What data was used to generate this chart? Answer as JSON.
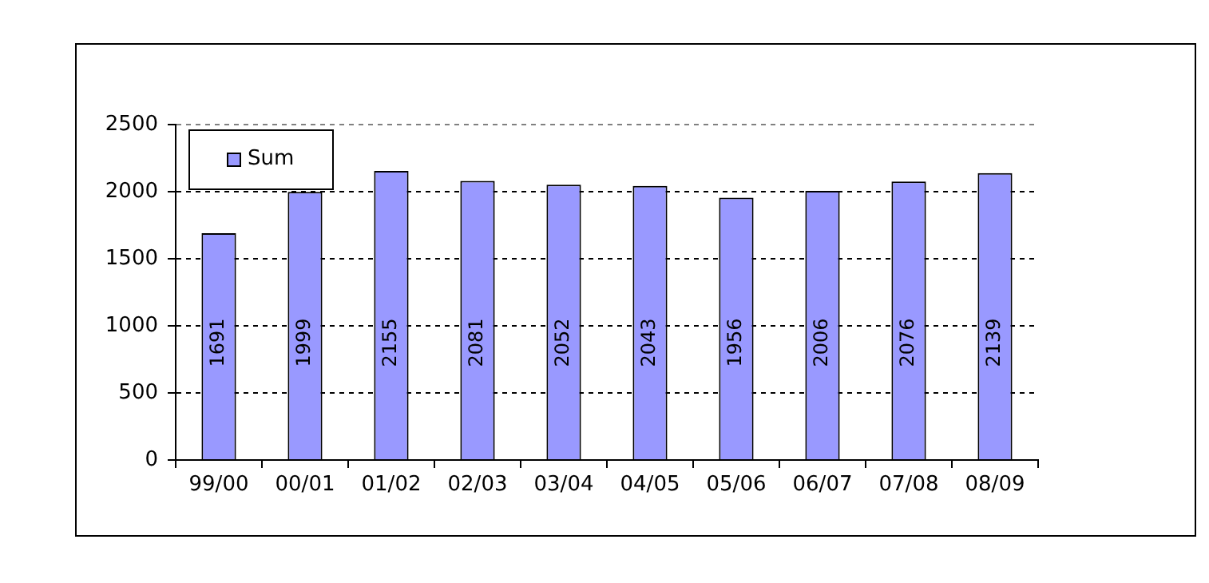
{
  "chart_data": {
    "type": "bar",
    "categories": [
      "99/00",
      "00/01",
      "01/02",
      "02/03",
      "03/04",
      "04/05",
      "05/06",
      "06/07",
      "07/08",
      "08/09"
    ],
    "series": [
      {
        "name": "Sum",
        "color": "#9999ff",
        "values": [
          1691,
          1999,
          2155,
          2081,
          2052,
          2043,
          1956,
          2006,
          2076,
          2139
        ]
      }
    ],
    "ylim": [
      0,
      2500
    ],
    "yticks": [
      0,
      500,
      1000,
      1500,
      2000,
      2500
    ],
    "grid": "y",
    "legend": "top left",
    "data_labels": true
  }
}
